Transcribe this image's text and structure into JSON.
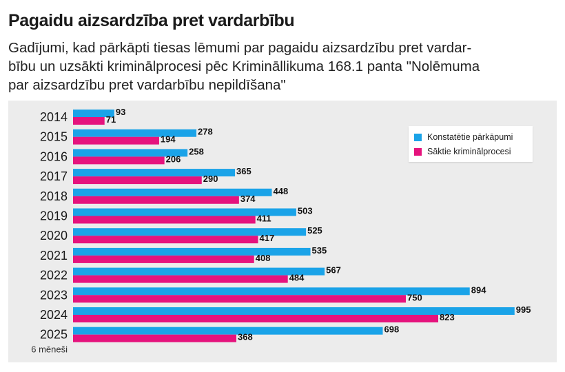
{
  "title": "Pagaidu aizsardzība pret vardarbību",
  "subtitle": "Gadījumi, kad pārkāpti tiesas lēmumi par pagaidu aizsardzību pret vardar-bību un uzsākti kriminālprocesi pēc Krimināllikuma 168.1 panta \"Nolēmuma par aizsardzību pret vardarbību nepildīšana\"",
  "subtitle_lines": [
    "Gadījumi, kad pārkāpti tiesas lēmumi par pagaidu aizsardzību pret vardar-",
    "bību un uzsākti kriminālprocesi pēc Krimināllikuma 168.1 panta \"Nolēmuma",
    "par aizsardzību pret vardarbību nepildīšana\""
  ],
  "colors": {
    "series1": "#1aa3e8",
    "series2": "#e5137d",
    "background": "#ececec"
  },
  "chart_data": {
    "type": "bar",
    "orientation": "horizontal",
    "categories": [
      "2014",
      "2015",
      "2016",
      "2017",
      "2018",
      "2019",
      "2020",
      "2021",
      "2022",
      "2023",
      "2024",
      "2025"
    ],
    "category_sublabels": {
      "2025": "6 mēneši"
    },
    "series": [
      {
        "name": "Konstatētie pārkāpumi",
        "color": "#1aa3e8",
        "values": [
          93,
          278,
          258,
          365,
          448,
          503,
          525,
          535,
          567,
          894,
          995,
          698
        ]
      },
      {
        "name": "Sāktie kriminālprocesi",
        "color": "#e5137d",
        "values": [
          71,
          194,
          206,
          290,
          374,
          411,
          417,
          408,
          484,
          750,
          823,
          368
        ]
      }
    ],
    "xlim": [
      0,
      1000
    ],
    "data_labels": true,
    "legend_position": "top-right",
    "grid": false
  }
}
